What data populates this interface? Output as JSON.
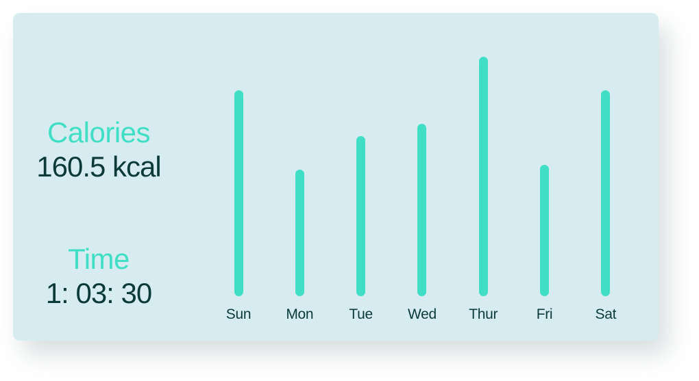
{
  "stats": {
    "calories": {
      "label": "Calories",
      "value": "160.5 kcal"
    },
    "time": {
      "label": "Time",
      "value": "1: 03: 30"
    }
  },
  "colors": {
    "accent": "#40dfc5",
    "card_background": "#d6ecf0",
    "text_dark": "#0c3a3a"
  },
  "chart_data": {
    "type": "bar",
    "categories": [
      "Sun",
      "Mon",
      "Tue",
      "Wed",
      "Thur",
      "Fri",
      "Sat"
    ],
    "values": [
      0.86,
      0.53,
      0.67,
      0.72,
      1.0,
      0.55,
      0.86
    ],
    "ylim": [
      0,
      1
    ],
    "grid": false,
    "axes_visible": false
  }
}
